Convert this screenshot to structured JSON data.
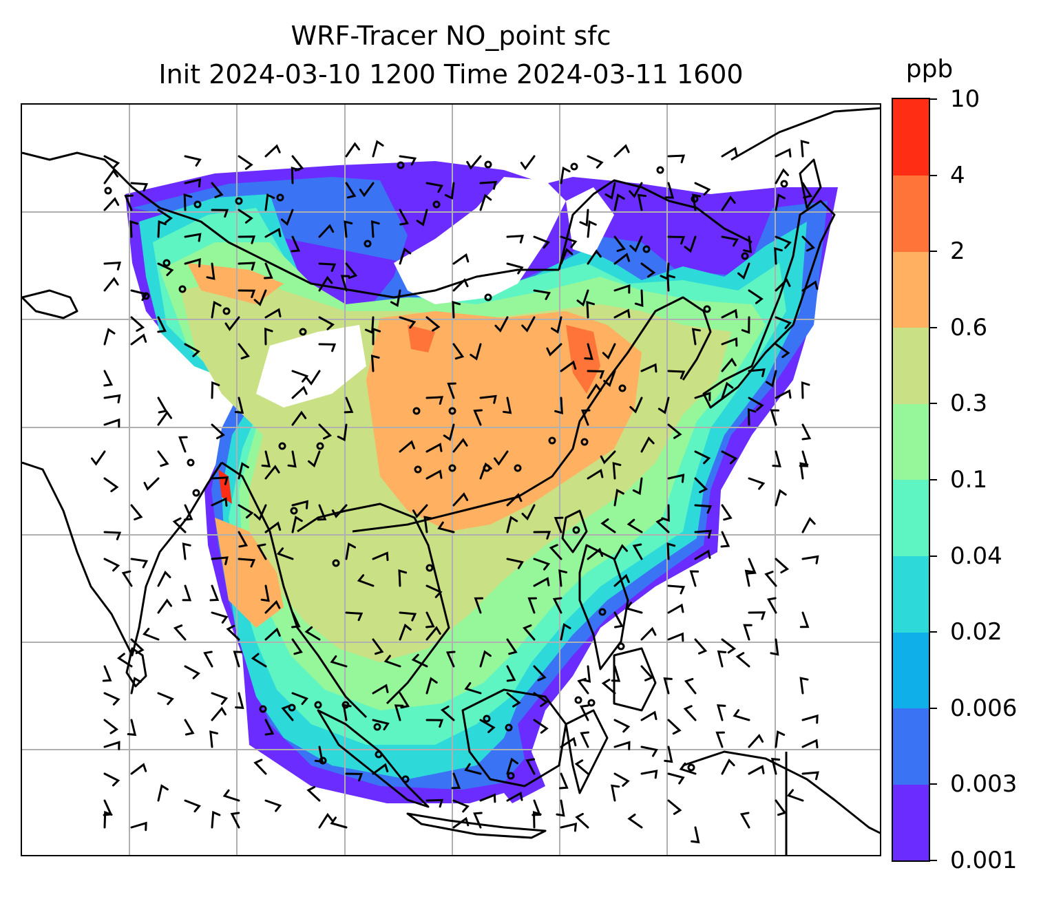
{
  "title": {
    "line1": "WRF-Tracer NO_point sfc",
    "line2": "Init 2024-03-10 1200 Time 2024-03-11 1600"
  },
  "colorbar": {
    "unit": "ppb",
    "levels": [
      "0.001",
      "0.003",
      "0.006",
      "0.02",
      "0.04",
      "0.1",
      "0.3",
      "0.6",
      "2",
      "4",
      "10"
    ],
    "colors": [
      "#6a2cff",
      "#3a73f4",
      "#0fb0ea",
      "#2ed9d9",
      "#5ff5c2",
      "#96f69a",
      "#c9e085",
      "#ffb060",
      "#ff7439",
      "#ff2d14"
    ]
  },
  "map": {
    "type": "filled contour with wind barbs",
    "region": "East Asia / Southeast Asia",
    "gridlines": true,
    "coastlines": true,
    "wind_barbs": true,
    "colors": {
      "coast": "#000000",
      "grid": "#b0b0b0"
    }
  }
}
